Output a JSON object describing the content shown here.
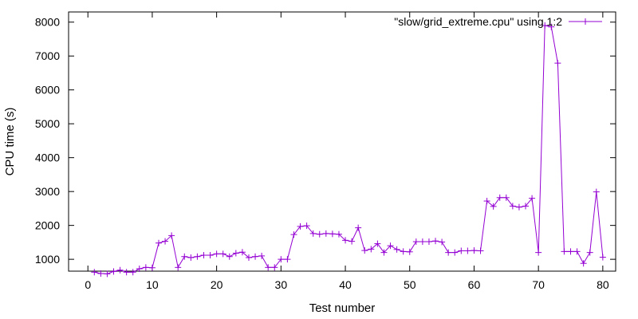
{
  "chart_data": {
    "type": "line",
    "title": "",
    "xlabel": "Test number",
    "ylabel": "CPU time (s)",
    "xlim": [
      -3,
      82
    ],
    "ylim": [
      650,
      8300
    ],
    "xticks": [
      0,
      10,
      20,
      30,
      40,
      50,
      60,
      70,
      80
    ],
    "yticks": [
      1000,
      2000,
      3000,
      4000,
      5000,
      6000,
      7000,
      8000
    ],
    "grid": false,
    "legend_position": "top-right",
    "series_color": "#9400d3",
    "series": [
      {
        "name": "\"slow/grid_extreme.cpu\" using 1:2",
        "marker": "plus",
        "x": [
          1,
          2,
          3,
          4,
          5,
          6,
          7,
          8,
          9,
          10,
          11,
          12,
          13,
          14,
          15,
          16,
          17,
          18,
          19,
          20,
          21,
          22,
          23,
          24,
          25,
          26,
          27,
          28,
          29,
          30,
          31,
          32,
          33,
          34,
          35,
          36,
          37,
          38,
          39,
          40,
          41,
          42,
          43,
          44,
          45,
          46,
          47,
          48,
          49,
          50,
          51,
          52,
          53,
          54,
          55,
          56,
          57,
          58,
          59,
          60,
          61,
          62,
          63,
          64,
          65,
          66,
          67,
          68,
          69,
          70,
          71,
          72,
          73,
          74,
          75,
          76,
          77,
          78,
          79,
          80
        ],
        "y": [
          620,
          580,
          570,
          640,
          680,
          620,
          620,
          720,
          760,
          750,
          1480,
          1530,
          1700,
          760,
          1080,
          1050,
          1080,
          1120,
          1120,
          1160,
          1160,
          1080,
          1180,
          1210,
          1050,
          1080,
          1100,
          760,
          760,
          1000,
          1000,
          1730,
          1970,
          1990,
          1760,
          1740,
          1760,
          1750,
          1740,
          1560,
          1530,
          1930,
          1260,
          1300,
          1460,
          1200,
          1400,
          1290,
          1230,
          1220,
          1520,
          1520,
          1520,
          1540,
          1510,
          1200,
          1200,
          1250,
          1250,
          1260,
          1250,
          2720,
          2560,
          2820,
          2820,
          2570,
          2540,
          2570,
          2800,
          1200,
          7900,
          7860,
          6790,
          1230,
          1230,
          1230,
          880,
          1200,
          2990,
          1060
        ]
      }
    ]
  }
}
